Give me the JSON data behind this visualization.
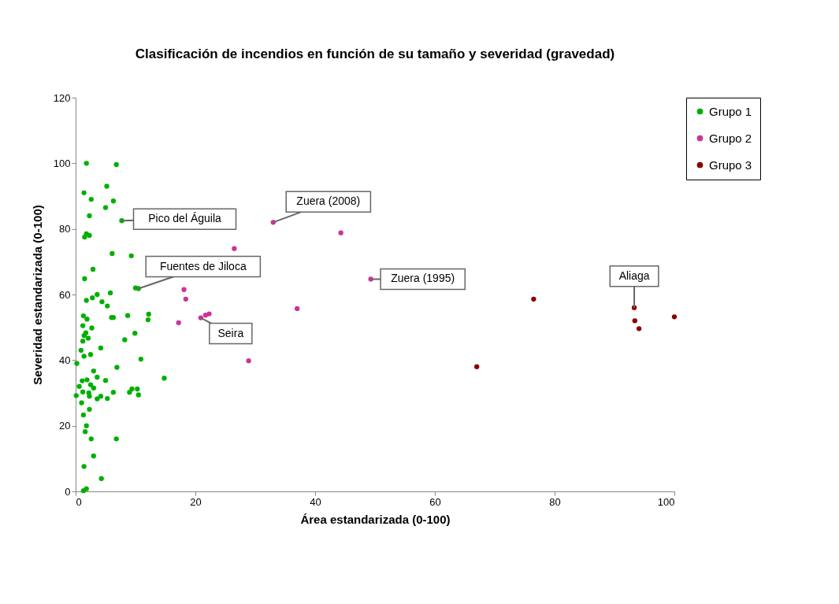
{
  "chart_data": {
    "type": "scatter",
    "title": "Clasificación de incendios en función de su tamaño y severidad (gravedad)",
    "xlabel": "Área estandarizada (0-100)",
    "ylabel": "Severidad estandarizada (0-100)",
    "xlim": [
      0,
      100
    ],
    "xticks": [
      0,
      20,
      40,
      60,
      80,
      100
    ],
    "ylim": [
      0,
      120
    ],
    "yticks": [
      0,
      20,
      40,
      60,
      80,
      100,
      120
    ],
    "grid": false,
    "legend": "right",
    "marker": "circle",
    "series": [
      {
        "name": "Grupo 1",
        "color": "#00b000",
        "x": [
          1.8,
          6.8,
          1.4,
          5.2,
          6.3,
          2.6,
          5.0,
          2.3,
          1.8,
          2.3,
          1.5,
          7.7,
          6.1,
          9.3,
          2.9,
          1.5,
          10.0,
          10.5,
          5.8,
          3.6,
          2.8,
          1.8,
          4.4,
          5.3,
          1.3,
          8.7,
          12.2,
          1.9,
          6.0,
          6.3,
          12.1,
          1.2,
          2.7,
          1.7,
          1.4,
          9.9,
          2.1,
          8.2,
          1.2,
          4.2,
          0.9,
          2.5,
          1.4,
          10.9,
          0.2,
          3.6,
          6.9,
          3.0,
          14.8,
          5.0,
          1.1,
          1.9,
          2.5,
          0.6,
          3.0,
          9.4,
          10.3,
          9.0,
          1.2,
          0.1,
          2.2,
          4.2,
          3.6,
          5.3,
          10.5,
          6.3,
          2.3,
          1.0,
          2.3,
          1.3,
          1.8,
          1.6,
          6.8,
          2.6,
          3.0,
          1.4,
          4.3,
          1.8,
          1.3
        ],
        "values": [
          100,
          99.6,
          91,
          93,
          88.5,
          89,
          86.5,
          84,
          78.5,
          78,
          77.5,
          82.5,
          72.5,
          71.8,
          67.7,
          64.8,
          62,
          61.8,
          60.5,
          60,
          59,
          58.2,
          57.8,
          56.5,
          53.5,
          53.6,
          54,
          52.5,
          53,
          53,
          52.3,
          50.5,
          49.8,
          48.3,
          47.5,
          48.2,
          46.7,
          46.2,
          45.8,
          43.7,
          43,
          41.7,
          41.2,
          40.3,
          39,
          34.8,
          37.8,
          36.7,
          34.5,
          33.8,
          33.7,
          34,
          32.5,
          32,
          31.5,
          31.2,
          31.2,
          30.2,
          30.3,
          29.2,
          30,
          29,
          28.2,
          28.3,
          29.4,
          30.2,
          29,
          27,
          25,
          23.3,
          20,
          18.2,
          16,
          16,
          10.8,
          7.6,
          3.9,
          0.8,
          0.2
        ]
      },
      {
        "name": "Grupo 2",
        "color": "#cc3399",
        "x": [
          33,
          44.3,
          26.5,
          49.3,
          18.1,
          18.4,
          37,
          21.7,
          22.3,
          20.9,
          17.2,
          28.9
        ],
        "values": [
          82,
          78.8,
          74,
          64.7,
          61.5,
          58.6,
          55.7,
          53.7,
          54.1,
          52.9,
          51.4,
          39.8
        ]
      },
      {
        "name": "Grupo 3",
        "color": "#8b0000",
        "x": [
          93.3,
          93.4,
          94.1,
          76.5,
          67,
          100
        ],
        "values": [
          56,
          52,
          49.6,
          58.6,
          38,
          53.2
        ]
      }
    ],
    "annotations": [
      {
        "text": "Pico del Águila",
        "x": 7.7,
        "y": 82.5
      },
      {
        "text": "Fuentes de Jiloca",
        "x": 10.5,
        "y": 61.8
      },
      {
        "text": "Seira",
        "x": 20.9,
        "y": 52.9
      },
      {
        "text": "Zuera (2008)",
        "x": 33,
        "y": 82
      },
      {
        "text": "Zuera (1995)",
        "x": 49.3,
        "y": 64.7
      },
      {
        "text": "Aliaga",
        "x": 93.3,
        "y": 56
      }
    ]
  }
}
